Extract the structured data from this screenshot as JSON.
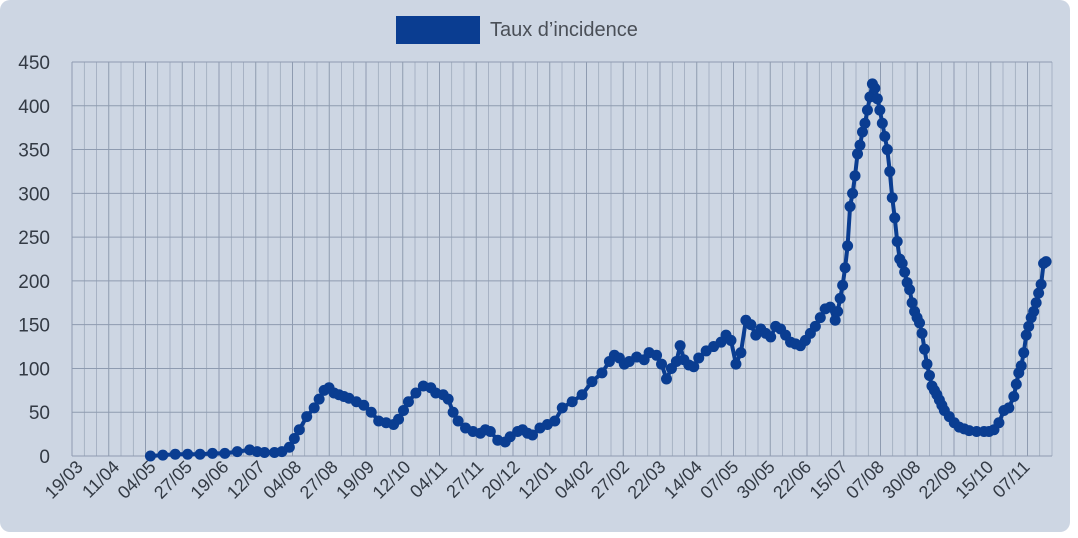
{
  "colors": {
    "background": "#cdd6e3",
    "series": "#0a3d91",
    "grid": "#8e9bb0",
    "axis_text": "#333a44"
  },
  "legend": {
    "label": "Taux d’incidence",
    "position": "top-center"
  },
  "chart_data": {
    "type": "line",
    "title": "",
    "xlabel": "",
    "ylabel": "",
    "ylim": [
      0,
      450
    ],
    "y_ticks": [
      0,
      50,
      100,
      150,
      200,
      250,
      300,
      350,
      400,
      450
    ],
    "x_tick_labels": [
      "19/03",
      "11/04",
      "04/05",
      "27/05",
      "19/06",
      "12/07",
      "04/08",
      "27/08",
      "19/09",
      "12/10",
      "04/11",
      "27/11",
      "20/12",
      "12/01",
      "04/02",
      "27/02",
      "22/03",
      "14/04",
      "07/05",
      "30/05",
      "22/06",
      "15/07",
      "07/08",
      "30/08",
      "22/09",
      "15/10",
      "07/11"
    ],
    "grid": true,
    "marker": "circle",
    "series": [
      {
        "name": "Taux d’incidence",
        "points": [
          [
            3.0,
            0
          ],
          [
            3.5,
            1
          ],
          [
            4.0,
            2
          ],
          [
            4.5,
            2
          ],
          [
            5.0,
            2
          ],
          [
            5.5,
            3
          ],
          [
            6.0,
            3
          ],
          [
            6.5,
            5
          ],
          [
            7.0,
            7
          ],
          [
            7.3,
            5
          ],
          [
            7.6,
            4
          ],
          [
            8.0,
            4
          ],
          [
            8.3,
            5
          ],
          [
            8.6,
            10
          ],
          [
            8.8,
            20
          ],
          [
            9.0,
            30
          ],
          [
            9.3,
            45
          ],
          [
            9.6,
            55
          ],
          [
            9.8,
            65
          ],
          [
            10.0,
            75
          ],
          [
            10.2,
            78
          ],
          [
            10.4,
            72
          ],
          [
            10.6,
            70
          ],
          [
            10.8,
            68
          ],
          [
            11.0,
            66
          ],
          [
            11.3,
            62
          ],
          [
            11.6,
            58
          ],
          [
            11.9,
            50
          ],
          [
            12.2,
            40
          ],
          [
            12.5,
            38
          ],
          [
            12.8,
            36
          ],
          [
            13.0,
            42
          ],
          [
            13.2,
            52
          ],
          [
            13.4,
            62
          ],
          [
            13.7,
            72
          ],
          [
            14.0,
            80
          ],
          [
            14.3,
            78
          ],
          [
            14.5,
            72
          ],
          [
            14.8,
            70
          ],
          [
            15.0,
            65
          ],
          [
            15.2,
            50
          ],
          [
            15.4,
            40
          ],
          [
            15.7,
            32
          ],
          [
            16.0,
            28
          ],
          [
            16.3,
            26
          ],
          [
            16.5,
            30
          ],
          [
            16.7,
            28
          ],
          [
            17.0,
            18
          ],
          [
            17.3,
            16
          ],
          [
            17.5,
            22
          ],
          [
            17.8,
            28
          ],
          [
            18.0,
            30
          ],
          [
            18.2,
            26
          ],
          [
            18.4,
            24
          ],
          [
            18.7,
            32
          ],
          [
            19.0,
            36
          ],
          [
            19.3,
            40
          ],
          [
            19.6,
            55
          ],
          [
            20.0,
            62
          ],
          [
            20.4,
            70
          ],
          [
            20.8,
            85
          ],
          [
            21.2,
            95
          ],
          [
            21.5,
            108
          ],
          [
            21.7,
            115
          ],
          [
            21.9,
            112
          ],
          [
            22.1,
            105
          ],
          [
            22.3,
            108
          ],
          [
            22.6,
            113
          ],
          [
            22.9,
            110
          ],
          [
            23.1,
            118
          ],
          [
            23.4,
            115
          ],
          [
            23.6,
            105
          ],
          [
            23.8,
            88
          ],
          [
            24.0,
            100
          ],
          [
            24.2,
            108
          ],
          [
            24.35,
            126
          ],
          [
            24.5,
            110
          ],
          [
            24.7,
            104
          ],
          [
            24.9,
            102
          ],
          [
            25.1,
            112
          ],
          [
            25.4,
            120
          ],
          [
            25.7,
            125
          ],
          [
            26.0,
            130
          ],
          [
            26.2,
            138
          ],
          [
            26.4,
            132
          ],
          [
            26.6,
            105
          ],
          [
            26.8,
            118
          ],
          [
            27.0,
            155
          ],
          [
            27.2,
            150
          ],
          [
            27.4,
            138
          ],
          [
            27.6,
            145
          ],
          [
            27.8,
            140
          ],
          [
            28.0,
            136
          ],
          [
            28.2,
            148
          ],
          [
            28.4,
            145
          ],
          [
            28.6,
            138
          ],
          [
            28.8,
            130
          ],
          [
            29.0,
            128
          ],
          [
            29.2,
            126
          ],
          [
            29.4,
            132
          ],
          [
            29.6,
            140
          ],
          [
            29.8,
            148
          ],
          [
            30.0,
            158
          ],
          [
            30.2,
            168
          ],
          [
            30.4,
            170
          ],
          [
            30.6,
            155
          ],
          [
            30.7,
            165
          ],
          [
            30.8,
            180
          ],
          [
            30.9,
            195
          ],
          [
            31.0,
            215
          ],
          [
            31.1,
            240
          ],
          [
            31.2,
            285
          ],
          [
            31.3,
            300
          ],
          [
            31.4,
            320
          ],
          [
            31.5,
            345
          ],
          [
            31.6,
            355
          ],
          [
            31.7,
            370
          ],
          [
            31.8,
            380
          ],
          [
            31.9,
            395
          ],
          [
            32.0,
            410
          ],
          [
            32.1,
            425
          ],
          [
            32.2,
            420
          ],
          [
            32.3,
            408
          ],
          [
            32.4,
            395
          ],
          [
            32.5,
            380
          ],
          [
            32.6,
            365
          ],
          [
            32.7,
            350
          ],
          [
            32.8,
            325
          ],
          [
            32.9,
            295
          ],
          [
            33.0,
            272
          ],
          [
            33.1,
            245
          ],
          [
            33.2,
            225
          ],
          [
            33.3,
            220
          ],
          [
            33.4,
            210
          ],
          [
            33.5,
            198
          ],
          [
            33.6,
            190
          ],
          [
            33.7,
            175
          ],
          [
            33.8,
            165
          ],
          [
            33.9,
            158
          ],
          [
            34.0,
            152
          ],
          [
            34.1,
            140
          ],
          [
            34.2,
            122
          ],
          [
            34.3,
            105
          ],
          [
            34.4,
            92
          ],
          [
            34.5,
            80
          ],
          [
            34.6,
            75
          ],
          [
            34.7,
            70
          ],
          [
            34.8,
            64
          ],
          [
            34.9,
            58
          ],
          [
            35.0,
            52
          ],
          [
            35.2,
            45
          ],
          [
            35.4,
            38
          ],
          [
            35.6,
            33
          ],
          [
            35.8,
            31
          ],
          [
            36.0,
            29
          ],
          [
            36.3,
            28
          ],
          [
            36.6,
            28
          ],
          [
            36.8,
            28
          ],
          [
            37.0,
            30
          ],
          [
            37.2,
            38
          ],
          [
            37.4,
            52
          ],
          [
            37.6,
            55
          ],
          [
            37.8,
            68
          ],
          [
            37.9,
            82
          ],
          [
            38.0,
            95
          ],
          [
            38.1,
            103
          ],
          [
            38.2,
            118
          ],
          [
            38.3,
            138
          ],
          [
            38.4,
            148
          ],
          [
            38.5,
            158
          ],
          [
            38.6,
            165
          ],
          [
            38.7,
            175
          ],
          [
            38.8,
            186
          ],
          [
            38.9,
            196
          ],
          [
            39.0,
            220
          ],
          [
            39.1,
            222
          ]
        ]
      }
    ]
  }
}
